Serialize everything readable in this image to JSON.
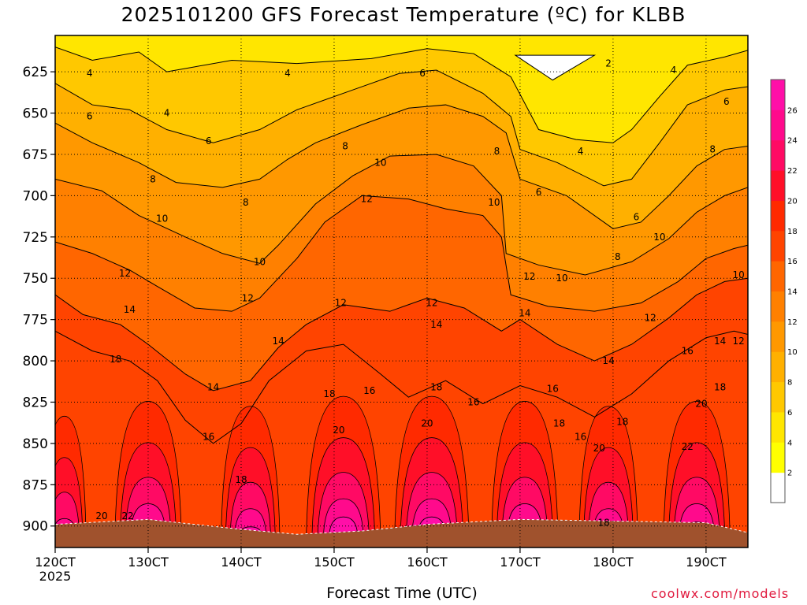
{
  "title": "2025101200 GFS Forecast Temperature (ºC) for KLBB",
  "credit": "coolwx.com/models",
  "chart_data": {
    "type": "heatmap",
    "title": "2025101200 GFS Forecast Temperature (ºC) for KLBB",
    "xlabel": "Forecast Time (UTC)",
    "ylabel": "",
    "x_tick_labels": [
      "120CT",
      "130CT",
      "140CT",
      "150CT",
      "160CT",
      "170CT",
      "180CT",
      "190CT"
    ],
    "x_year_label": "2025",
    "y_ticks": [
      625,
      650,
      675,
      700,
      725,
      750,
      775,
      800,
      825,
      850,
      875,
      900
    ],
    "ylim": [
      913,
      603
    ],
    "xlim_days": [
      12.0,
      19.45
    ],
    "colorbar": {
      "levels": [
        2,
        4,
        6,
        8,
        10,
        12,
        14,
        16,
        18,
        20,
        22,
        24,
        26
      ],
      "colors": [
        "#ffffff",
        "#ffff00",
        "#ffe600",
        "#ffc800",
        "#ffb000",
        "#ff9800",
        "#ff8000",
        "#ff6600",
        "#ff4400",
        "#ff2a00",
        "#ff0f28",
        "#ff0a64",
        "#ff0a8c",
        "#ff0fa8"
      ]
    },
    "contours": [
      {
        "label": "2",
        "points": [
          [
            16.95,
            615
          ],
          [
            17.35,
            630
          ],
          [
            17.8,
            615
          ]
        ]
      },
      {
        "label": "4",
        "points": [
          [
            12.0,
            610
          ],
          [
            12.4,
            618
          ],
          [
            12.9,
            613
          ],
          [
            13.2,
            625
          ],
          [
            13.5,
            622
          ],
          [
            13.9,
            618
          ],
          [
            14.6,
            620
          ],
          [
            15.4,
            617
          ],
          [
            16.0,
            611
          ],
          [
            16.5,
            614
          ],
          [
            16.9,
            628
          ],
          [
            17.2,
            660
          ],
          [
            17.6,
            666
          ],
          [
            18.0,
            668
          ],
          [
            18.2,
            660
          ],
          [
            18.5,
            640
          ],
          [
            18.8,
            621
          ],
          [
            19.2,
            616
          ],
          [
            19.45,
            612
          ]
        ]
      },
      {
        "label": "6",
        "points": [
          [
            12.0,
            632
          ],
          [
            12.4,
            645
          ],
          [
            12.8,
            648
          ],
          [
            13.2,
            660
          ],
          [
            13.7,
            668
          ],
          [
            14.2,
            660
          ],
          [
            14.6,
            648
          ],
          [
            15.2,
            636
          ],
          [
            15.7,
            626
          ],
          [
            16.1,
            624
          ],
          [
            16.6,
            638
          ],
          [
            16.9,
            652
          ],
          [
            17.0,
            672
          ],
          [
            17.4,
            680
          ],
          [
            17.9,
            694
          ],
          [
            18.2,
            690
          ],
          [
            18.5,
            668
          ],
          [
            18.8,
            645
          ],
          [
            19.2,
            636
          ],
          [
            19.45,
            634
          ]
        ]
      },
      {
        "label": "8",
        "points": [
          [
            12.0,
            656
          ],
          [
            12.4,
            668
          ],
          [
            12.9,
            680
          ],
          [
            13.3,
            692
          ],
          [
            13.8,
            695
          ],
          [
            14.2,
            690
          ],
          [
            14.5,
            678
          ],
          [
            14.8,
            668
          ],
          [
            15.3,
            657
          ],
          [
            15.8,
            647
          ],
          [
            16.2,
            645
          ],
          [
            16.6,
            652
          ],
          [
            16.85,
            662
          ],
          [
            17.0,
            690
          ],
          [
            17.5,
            700
          ],
          [
            18.0,
            720
          ],
          [
            18.3,
            716
          ],
          [
            18.6,
            700
          ],
          [
            18.9,
            682
          ],
          [
            19.2,
            672
          ],
          [
            19.45,
            670
          ]
        ]
      },
      {
        "label": "10",
        "points": [
          [
            12.0,
            690
          ],
          [
            12.5,
            697
          ],
          [
            12.9,
            712
          ],
          [
            13.4,
            725
          ],
          [
            13.8,
            735
          ],
          [
            14.2,
            741
          ],
          [
            14.4,
            730
          ],
          [
            14.8,
            705
          ],
          [
            15.2,
            688
          ],
          [
            15.6,
            676
          ],
          [
            16.1,
            675
          ],
          [
            16.5,
            682
          ],
          [
            16.8,
            700
          ],
          [
            16.85,
            735
          ],
          [
            17.2,
            742
          ],
          [
            17.7,
            748
          ],
          [
            18.2,
            740
          ],
          [
            18.6,
            726
          ],
          [
            18.9,
            710
          ],
          [
            19.2,
            700
          ],
          [
            19.45,
            695
          ]
        ]
      },
      {
        "label": "12",
        "points": [
          [
            12.0,
            728
          ],
          [
            12.4,
            735
          ],
          [
            12.8,
            745
          ],
          [
            13.1,
            755
          ],
          [
            13.5,
            768
          ],
          [
            13.9,
            770
          ],
          [
            14.2,
            762
          ],
          [
            14.6,
            738
          ],
          [
            14.9,
            716
          ],
          [
            15.3,
            700
          ],
          [
            15.8,
            702
          ],
          [
            16.2,
            708
          ],
          [
            16.6,
            712
          ],
          [
            16.8,
            725
          ],
          [
            16.9,
            760
          ],
          [
            17.3,
            767
          ],
          [
            17.8,
            770
          ],
          [
            18.3,
            765
          ],
          [
            18.7,
            752
          ],
          [
            19.0,
            738
          ],
          [
            19.3,
            732
          ],
          [
            19.45,
            730
          ]
        ]
      },
      {
        "label": "14",
        "points": [
          [
            12.0,
            760
          ],
          [
            12.3,
            772
          ],
          [
            12.7,
            778
          ],
          [
            13.0,
            790
          ],
          [
            13.4,
            808
          ],
          [
            13.7,
            818
          ],
          [
            14.1,
            812
          ],
          [
            14.4,
            792
          ],
          [
            14.7,
            778
          ],
          [
            15.1,
            766
          ],
          [
            15.6,
            770
          ],
          [
            16.0,
            762
          ],
          [
            16.4,
            768
          ],
          [
            16.8,
            782
          ],
          [
            17.0,
            775
          ],
          [
            17.4,
            790
          ],
          [
            17.8,
            800
          ],
          [
            18.2,
            790
          ],
          [
            18.6,
            774
          ],
          [
            18.9,
            760
          ],
          [
            19.2,
            752
          ],
          [
            19.45,
            750
          ]
        ]
      },
      {
        "label": "16",
        "points": [
          [
            12.0,
            782
          ],
          [
            12.4,
            794
          ],
          [
            12.8,
            800
          ],
          [
            13.1,
            812
          ],
          [
            13.4,
            836
          ],
          [
            13.7,
            850
          ],
          [
            14.0,
            838
          ],
          [
            14.3,
            812
          ],
          [
            14.7,
            794
          ],
          [
            15.1,
            790
          ],
          [
            15.5,
            808
          ],
          [
            15.8,
            822
          ],
          [
            16.2,
            812
          ],
          [
            16.6,
            826
          ],
          [
            17.0,
            815
          ],
          [
            17.4,
            822
          ],
          [
            17.8,
            834
          ],
          [
            18.2,
            820
          ],
          [
            18.6,
            800
          ],
          [
            19.0,
            786
          ],
          [
            19.3,
            782
          ],
          [
            19.45,
            784
          ]
        ]
      }
    ],
    "contour_labels": [
      {
        "text": "4",
        "x": 12.37,
        "y": 626
      },
      {
        "text": "4",
        "x": 13.2,
        "y": 650
      },
      {
        "text": "4",
        "x": 14.5,
        "y": 626
      },
      {
        "text": "6",
        "x": 15.95,
        "y": 626
      },
      {
        "text": "2",
        "x": 17.95,
        "y": 620
      },
      {
        "text": "4",
        "x": 18.65,
        "y": 624
      },
      {
        "text": "6",
        "x": 12.37,
        "y": 652
      },
      {
        "text": "6",
        "x": 13.65,
        "y": 667
      },
      {
        "text": "8",
        "x": 15.12,
        "y": 670
      },
      {
        "text": "8",
        "x": 16.75,
        "y": 673
      },
      {
        "text": "4",
        "x": 17.65,
        "y": 673
      },
      {
        "text": "6",
        "x": 19.22,
        "y": 643
      },
      {
        "text": "8",
        "x": 13.05,
        "y": 690
      },
      {
        "text": "10",
        "x": 15.5,
        "y": 680
      },
      {
        "text": "8",
        "x": 19.07,
        "y": 672
      },
      {
        "text": "8",
        "x": 14.05,
        "y": 704
      },
      {
        "text": "12",
        "x": 15.35,
        "y": 702
      },
      {
        "text": "10",
        "x": 16.72,
        "y": 704
      },
      {
        "text": "6",
        "x": 17.2,
        "y": 698
      },
      {
        "text": "6",
        "x": 18.25,
        "y": 713
      },
      {
        "text": "10",
        "x": 13.15,
        "y": 714
      },
      {
        "text": "10",
        "x": 14.2,
        "y": 740
      },
      {
        "text": "8",
        "x": 18.05,
        "y": 737
      },
      {
        "text": "10",
        "x": 18.5,
        "y": 725
      },
      {
        "text": "12",
        "x": 12.75,
        "y": 747
      },
      {
        "text": "12",
        "x": 17.1,
        "y": 749
      },
      {
        "text": "10",
        "x": 17.45,
        "y": 750
      },
      {
        "text": "10",
        "x": 19.35,
        "y": 748
      },
      {
        "text": "14",
        "x": 12.8,
        "y": 769
      },
      {
        "text": "12",
        "x": 14.07,
        "y": 762
      },
      {
        "text": "12",
        "x": 15.07,
        "y": 765
      },
      {
        "text": "12",
        "x": 16.05,
        "y": 765
      },
      {
        "text": "14",
        "x": 16.1,
        "y": 778
      },
      {
        "text": "14",
        "x": 17.05,
        "y": 771
      },
      {
        "text": "12",
        "x": 18.4,
        "y": 774
      },
      {
        "text": "14",
        "x": 14.4,
        "y": 788
      },
      {
        "text": "16",
        "x": 18.8,
        "y": 794
      },
      {
        "text": "14",
        "x": 19.15,
        "y": 788
      },
      {
        "text": "12",
        "x": 19.35,
        "y": 788
      },
      {
        "text": "18",
        "x": 12.65,
        "y": 799
      },
      {
        "text": "14",
        "x": 17.95,
        "y": 800
      },
      {
        "text": "14",
        "x": 13.7,
        "y": 816
      },
      {
        "text": "18",
        "x": 14.95,
        "y": 820
      },
      {
        "text": "16",
        "x": 15.38,
        "y": 818
      },
      {
        "text": "18",
        "x": 16.1,
        "y": 816
      },
      {
        "text": "16",
        "x": 16.5,
        "y": 825
      },
      {
        "text": "16",
        "x": 17.35,
        "y": 817
      },
      {
        "text": "18",
        "x": 19.15,
        "y": 816
      },
      {
        "text": "16",
        "x": 13.65,
        "y": 846
      },
      {
        "text": "20",
        "x": 15.05,
        "y": 842
      },
      {
        "text": "20",
        "x": 16.0,
        "y": 838
      },
      {
        "text": "18",
        "x": 17.42,
        "y": 838
      },
      {
        "text": "18",
        "x": 18.1,
        "y": 837
      },
      {
        "text": "20",
        "x": 18.95,
        "y": 826
      },
      {
        "text": "16",
        "x": 17.65,
        "y": 846
      },
      {
        "text": "20",
        "x": 17.85,
        "y": 853
      },
      {
        "text": "22",
        "x": 18.8,
        "y": 852
      },
      {
        "text": "18",
        "x": 14.0,
        "y": 872
      },
      {
        "text": "20",
        "x": 12.5,
        "y": 894
      },
      {
        "text": "22",
        "x": 12.78,
        "y": 894
      },
      {
        "text": "18",
        "x": 17.9,
        "y": 898
      }
    ]
  }
}
